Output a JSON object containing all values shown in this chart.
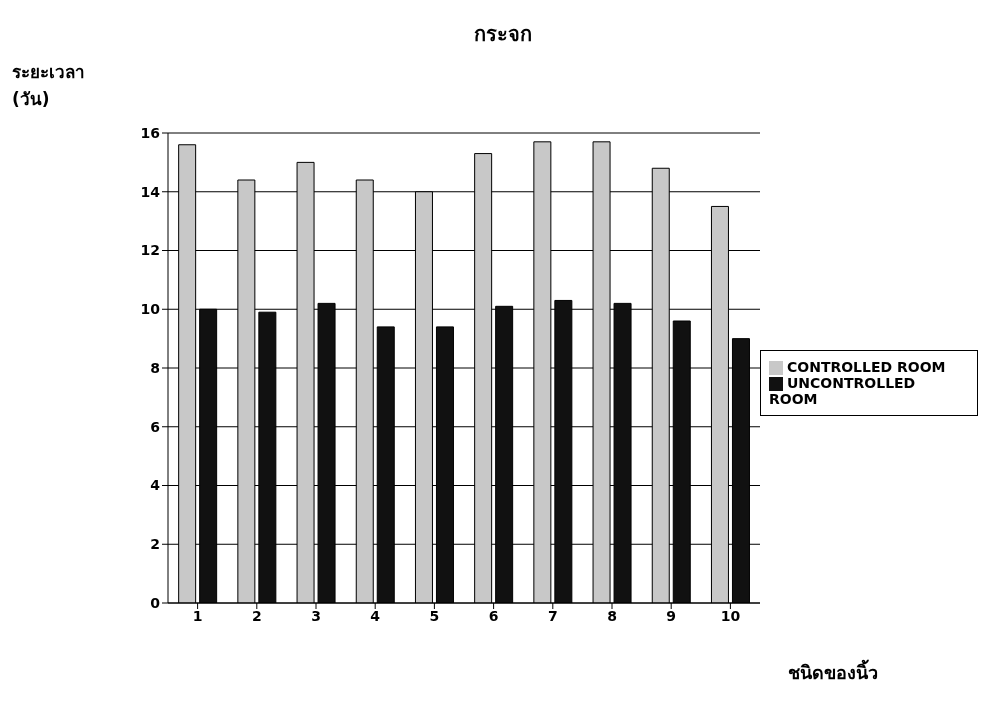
{
  "chart_data": {
    "type": "bar",
    "title": "กระจก",
    "xlabel": "ชนิดของนิ้ว",
    "ylabel": "ระยะเวลา (วัน)",
    "categories": [
      "1",
      "2",
      "3",
      "4",
      "5",
      "6",
      "7",
      "8",
      "9",
      "10"
    ],
    "series": [
      {
        "name": "CONTROLLED ROOM",
        "color": "#c8c8c8",
        "values": [
          15.6,
          14.4,
          15.0,
          14.4,
          14.0,
          15.3,
          15.7,
          15.7,
          14.8,
          13.5
        ]
      },
      {
        "name": "UNCONTROLLED ROOM",
        "color": "#111111",
        "values": [
          10.0,
          9.9,
          10.2,
          9.4,
          9.4,
          10.1,
          10.3,
          10.2,
          9.6,
          9.0
        ]
      }
    ],
    "ylim": [
      0,
      16
    ],
    "yticks": [
      0,
      2,
      4,
      6,
      8,
      10,
      12,
      14,
      16
    ],
    "grid": "y",
    "legend": "right"
  }
}
